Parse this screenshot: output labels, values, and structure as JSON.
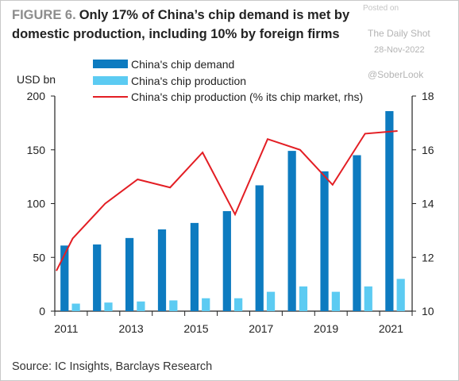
{
  "figure_label": "FIGURE 6.",
  "title": "Only 17% of China’s chip demand is met by domestic production, including 10% by foreign firms",
  "watermark": {
    "posted": "Posted on",
    "site": "The Daily Shot",
    "date": "28-Nov-2022",
    "handle": "@SoberLook"
  },
  "source": "Source: IC Insights, Barclays Research",
  "colors": {
    "demand": "#0d7bc0",
    "production": "#5ccbf2",
    "share_line": "#e31e24",
    "axis": "#222222"
  },
  "chart_data": {
    "type": "bar",
    "y_left_label": "USD bn",
    "ylim_left": [
      0,
      200
    ],
    "yticks_left": [
      0,
      50,
      100,
      150,
      200
    ],
    "ylim_right": [
      10,
      18
    ],
    "yticks_right": [
      10,
      12,
      14,
      16,
      18
    ],
    "legend_position": "top-center",
    "grid": false,
    "categories": [
      "2011",
      "2012",
      "2013",
      "2014",
      "2015",
      "2016",
      "2017",
      "2018",
      "2019",
      "2020",
      "2021"
    ],
    "xtick_labels": [
      "2011",
      "2013",
      "2015",
      "2017",
      "2019",
      "2021"
    ],
    "series": [
      {
        "name": "China's chip demand",
        "type": "bar",
        "axis": "left",
        "values": [
          61,
          62,
          68,
          76,
          82,
          93,
          117,
          149,
          130,
          145,
          186
        ]
      },
      {
        "name": "China's chip production",
        "type": "bar",
        "axis": "left",
        "values": [
          7,
          8,
          9,
          10,
          12,
          12,
          18,
          23,
          18,
          23,
          30
        ]
      },
      {
        "name": "China's chip production (% its chip market, rhs)",
        "type": "line",
        "axis": "right",
        "x": [
          2010.8,
          2011.3,
          2012.3,
          2013.3,
          2014.3,
          2015.3,
          2016.3,
          2017.3,
          2018.3,
          2019.3,
          2020.3,
          2021.3
        ],
        "values": [
          11.5,
          12.7,
          14.0,
          14.9,
          14.6,
          15.9,
          13.6,
          16.4,
          16.0,
          14.7,
          16.6,
          16.7
        ]
      }
    ]
  }
}
